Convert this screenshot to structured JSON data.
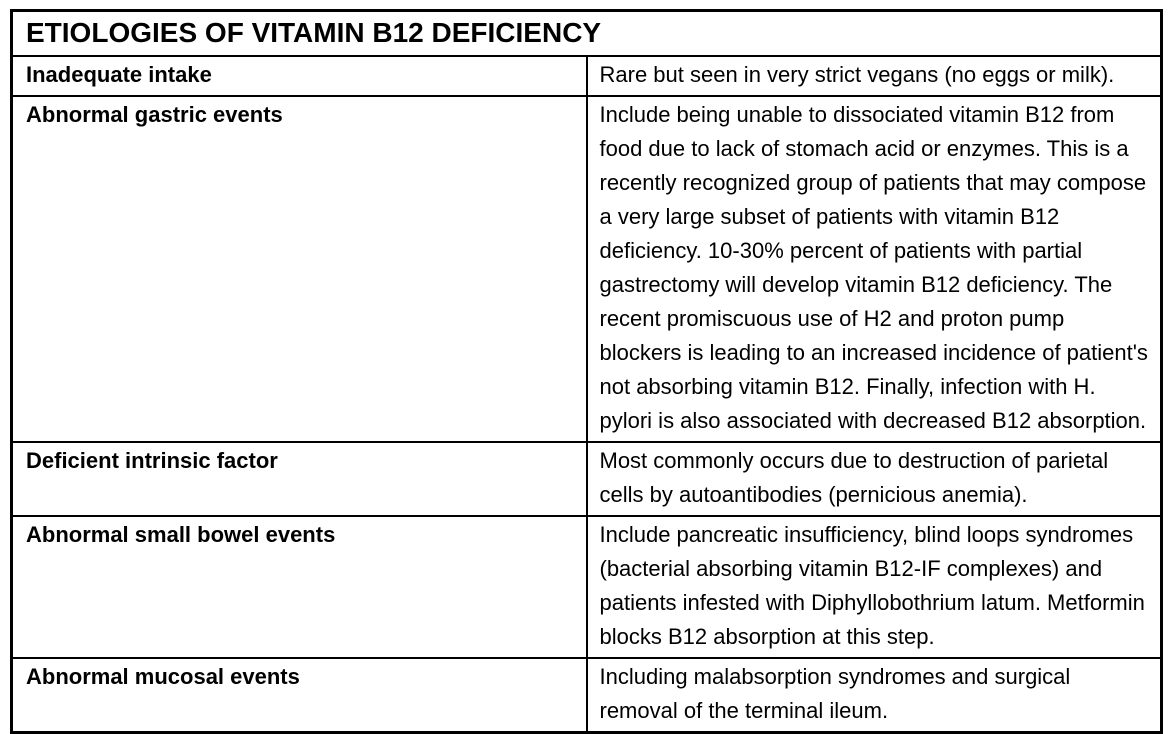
{
  "table": {
    "title": "ETIOLOGIES OF VITAMIN B12 DEFICIENCY",
    "rows": [
      {
        "label": "Inadequate intake",
        "description": "Rare but seen in very strict vegans (no eggs or milk)."
      },
      {
        "label": "Abnormal gastric events",
        "description": "Include being unable to dissociated vitamin B12 from food due to lack of stomach acid or enzymes. This is a recently recognized group of patients that may compose a very large subset of patients with vitamin B12 deficiency. 10-30% percent of patients with partial gastrectomy will develop vitamin B12 deficiency. The recent promiscuous use of H2 and proton pump blockers is leading to an increased incidence of patient's not absorbing vitamin B12. Finally, infection with H. pylori is also associated with decreased B12 absorption."
      },
      {
        "label": "Deficient intrinsic factor",
        "description": "Most commonly occurs due to destruction of parietal cells by autoantibodies (pernicious anemia)."
      },
      {
        "label": "Abnormal small bowel events",
        "description": "Include pancreatic insufficiency, blind loops syndromes (bacterial absorbing vitamin B12-IF complexes) and patients infested with Diphyllobothrium latum. Metformin blocks B12 absorption at this step."
      },
      {
        "label": "Abnormal mucosal events",
        "description": "Including malabsorption syndromes and surgical removal of the terminal ileum."
      }
    ]
  }
}
